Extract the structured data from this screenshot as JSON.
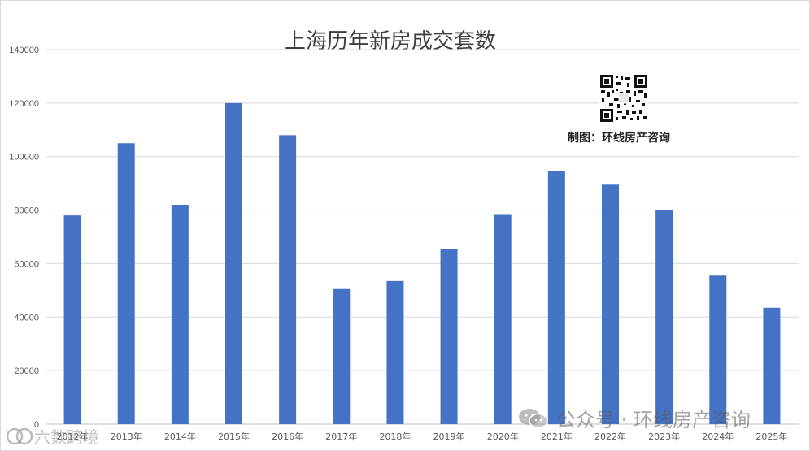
{
  "chart_data": {
    "type": "bar",
    "title": "上海历年新房成交套数",
    "categories": [
      "2012年",
      "2013年",
      "2014年",
      "2015年",
      "2016年",
      "2017年",
      "2018年",
      "2019年",
      "2020年",
      "2021年",
      "2022年",
      "2023年",
      "2024年",
      "2025年"
    ],
    "values": [
      78000,
      105000,
      82000,
      120000,
      108000,
      50500,
      53500,
      65500,
      78500,
      94500,
      89500,
      80000,
      55500,
      43500
    ],
    "y_ticks": [
      "0",
      "20000",
      "40000",
      "60000",
      "80000",
      "100000",
      "120000",
      "140000"
    ],
    "ylim": [
      0,
      140000
    ],
    "xlabel": "",
    "ylabel": "",
    "grid": true,
    "bar_color": "#4472c4"
  },
  "annotation": {
    "credit": "制图：环线房产咨询"
  },
  "watermarks": {
    "right": "公众号 · 环线房产咨询",
    "left": "六数跨境"
  }
}
